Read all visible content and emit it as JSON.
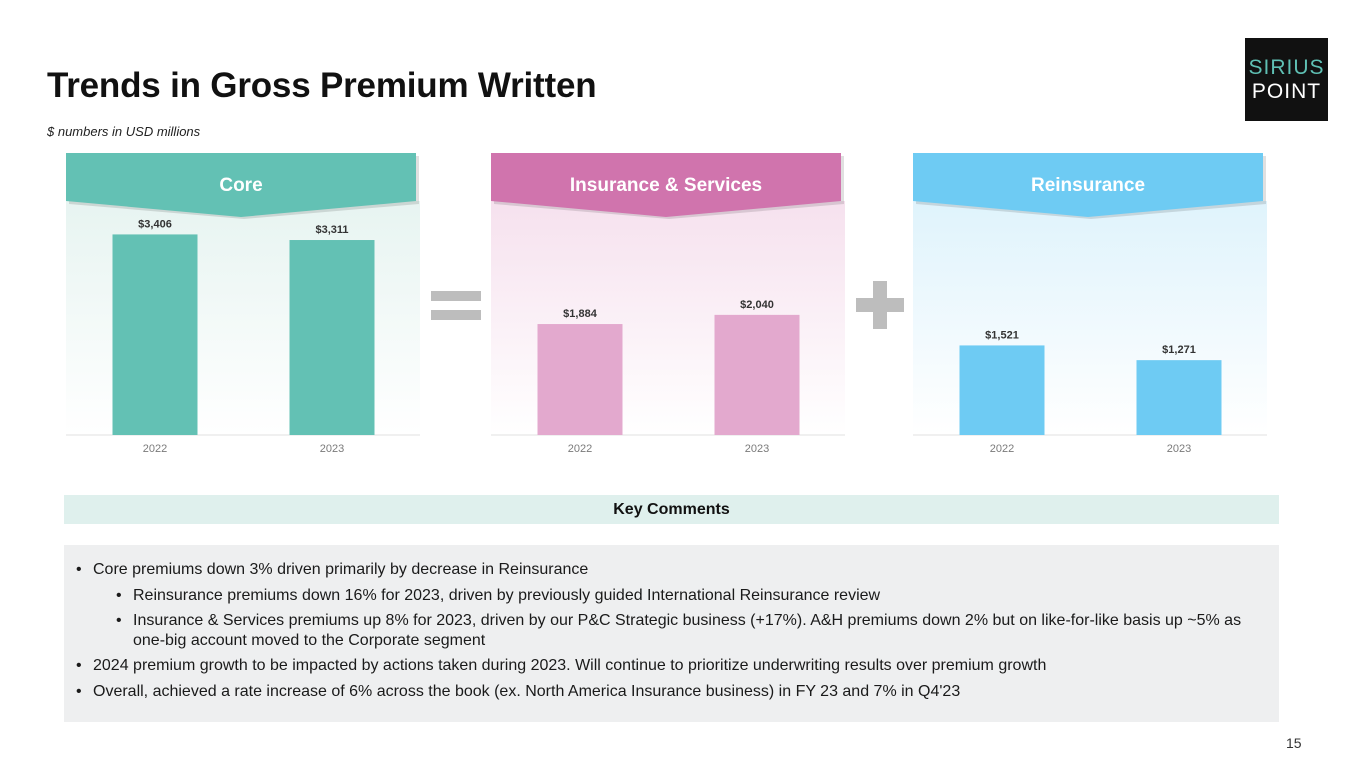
{
  "title": "Trends in Gross Premium Written",
  "subtitle": "$ numbers in USD millions",
  "logo": {
    "line1": "SIRIUS",
    "line2": "POINT"
  },
  "operators": {
    "equals": "equals-sign",
    "plus": "plus-sign"
  },
  "colors": {
    "core": "#63c1b4",
    "core_bg": "#e7f4f1",
    "ins": "#d074ad",
    "ins_bar": "#e3a9ce",
    "ins_bg": "#f6e1ee",
    "re": "#6ecbf3",
    "re_bg": "#dff3fc",
    "operator": "#bdbdbd"
  },
  "chart_data": [
    {
      "type": "bar",
      "title": "Core",
      "categories": [
        "2022",
        "2023"
      ],
      "values": [
        3406,
        3311
      ],
      "value_labels": [
        "$3,406",
        "$3,311"
      ],
      "ylim": [
        0,
        3600
      ]
    },
    {
      "type": "bar",
      "title": "Insurance & Services",
      "categories": [
        "2022",
        "2023"
      ],
      "values": [
        1884,
        2040
      ],
      "value_labels": [
        "$1,884",
        "$2,040"
      ],
      "ylim": [
        0,
        3600
      ]
    },
    {
      "type": "bar",
      "title": "Reinsurance",
      "categories": [
        "2022",
        "2023"
      ],
      "values": [
        1521,
        1271
      ],
      "value_labels": [
        "$1,521",
        "$1,271"
      ],
      "ylim": [
        0,
        3600
      ]
    }
  ],
  "key_comments": {
    "heading": "Key Comments",
    "items": [
      "Core premiums down 3% driven primarily by decrease in Reinsurance",
      "Reinsurance premiums down 16% for 2023, driven by previously guided International Reinsurance review",
      "Insurance & Services premiums up 8% for 2023, driven by our P&C Strategic business (+17%). A&H premiums down 2% but on like-for-like basis up ~5% as one-big account moved to the Corporate segment",
      "2024 premium growth to be impacted by actions taken during 2023. Will continue to prioritize underwriting results over premium growth",
      "Overall, achieved a rate increase of 6% across the book (ex. North America Insurance business) in FY 23 and 7% in Q4'23"
    ]
  },
  "page_number": "15"
}
